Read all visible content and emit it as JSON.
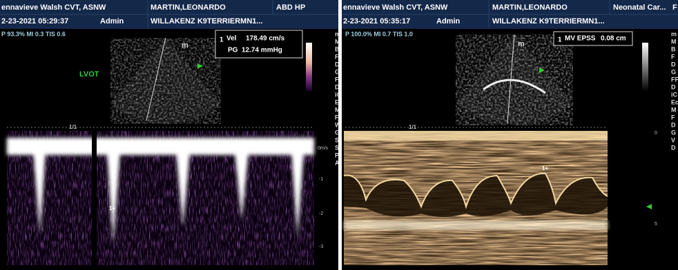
{
  "left": {
    "header": {
      "operator": "ennavieve Walsh CVT, ASNW",
      "patient": "MARTIN,LEONARDO",
      "exam": "ABD HP",
      "date": "2-23-2021 05:29:37",
      "user": "Admin",
      "patient_id": "WILLAKENZ K9TERRIERMN1..."
    },
    "params": "P 93.3%  MI 0.3  TIS 0.6",
    "probe_mark": "m",
    "measurement": {
      "index": "1",
      "line1_label": "Vel",
      "line1_value": "178.49 cm/s",
      "line2_label": "PG",
      "line2_value": "12.74 mmHg"
    },
    "label": "LVOT",
    "sweep": "1/1",
    "baseline": "0m/s",
    "scale": [
      "-1",
      "-2",
      "-3"
    ],
    "side_letters": [
      "m",
      "M",
      "B",
      "F",
      "D",
      "G",
      "FF",
      "D",
      "iC",
      "Ec",
      "M",
      "F",
      "W",
      "G",
      "SV",
      "SV",
      "PR",
      "A"
    ]
  },
  "right": {
    "header": {
      "operator": "ennavieve Walsh CVT, ASNW",
      "patient": "MARTIN,LEONARDO",
      "exam": "Neonatal Car...",
      "extra": "F",
      "date": "2-23-2021 05:35:17",
      "user": "Admin",
      "patient_id": "WILLAKENZ K9TERRIERMN1..."
    },
    "params": "P 100.0%  MI 0.7  TIS 1.0",
    "probe_mark": "m",
    "measurement": {
      "index": "1",
      "label": "MV EPSS",
      "value": "0.08 cm"
    },
    "sweep": "1/1",
    "scale": [
      "0",
      "5"
    ],
    "side_letters": [
      "m",
      "M",
      "B",
      "F",
      "D",
      "G",
      "FF",
      "D",
      "iC",
      "Ec",
      "M",
      "F",
      "D",
      "G",
      "V",
      "D"
    ]
  }
}
